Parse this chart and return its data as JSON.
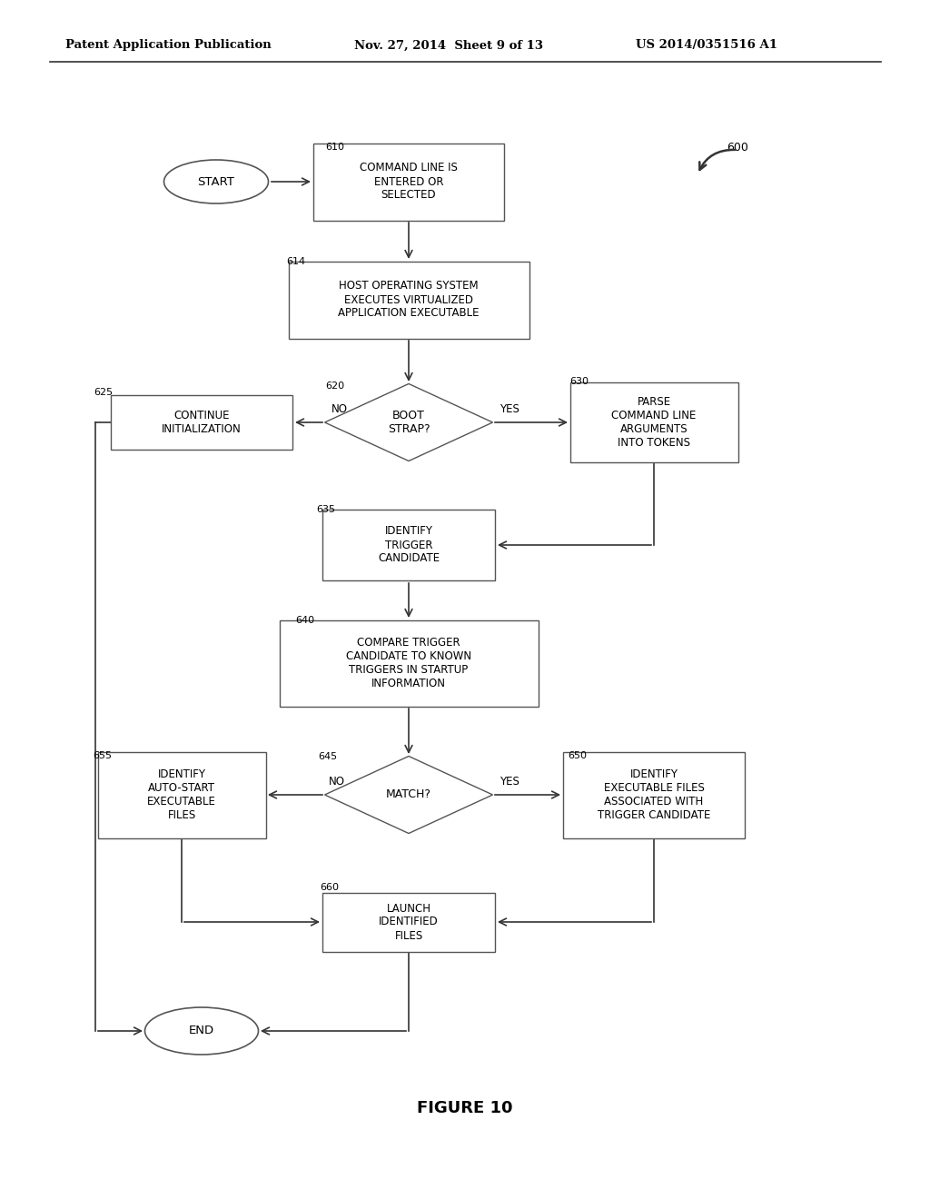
{
  "bg_color": "#ffffff",
  "header_left": "Patent Application Publication",
  "header_mid": "Nov. 27, 2014  Sheet 9 of 13",
  "header_right": "US 2014/0351516 A1",
  "figure_label": "FIGURE 10"
}
